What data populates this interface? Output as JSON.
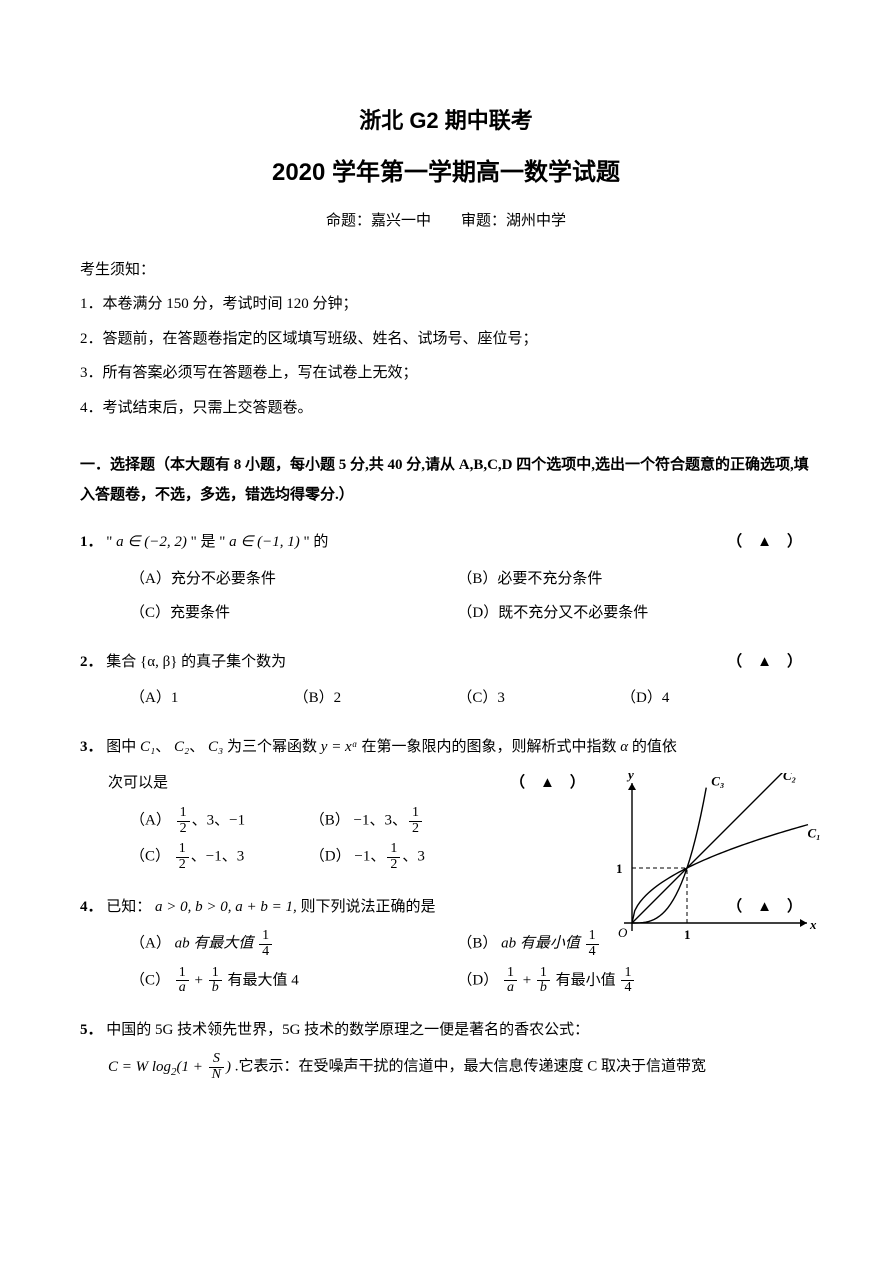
{
  "header": {
    "title_main": "浙北 G2 期中联考",
    "title_sub": "2020 学年第一学期高一数学试题",
    "attribution": "命题：嘉兴一中　　审题：湖州中学"
  },
  "notice": {
    "heading": "考生须知：",
    "items": [
      "1．本卷满分 150 分，考试时间 120 分钟；",
      "2．答题前，在答题卷指定的区域填写班级、姓名、试场号、座位号；",
      "3．所有答案必须写在答题卷上，写在试卷上无效；",
      "4．考试结束后，只需上交答题卷。"
    ]
  },
  "section1": {
    "heading": "一．选择题（本大题有 8 小题，每小题 5 分,共 40 分,请从 A,B,C,D 四个选项中,选出一个符合题意的正确选项,填入答题卷，不选，多选，错选均得零分.）"
  },
  "blank": "（　▲　）",
  "q1": {
    "num": "1．",
    "stem_a": "\" ",
    "stem_b": " \" 是 \" ",
    "stem_c": " \" 的",
    "math1": "a ∈ (−2, 2)",
    "math2": "a ∈ (−1, 1)",
    "optA": "（A）充分不必要条件",
    "optB": "（B）必要不充分条件",
    "optC": "（C）充要条件",
    "optD": "（D）既不充分又不必要条件"
  },
  "q2": {
    "num": "2．",
    "stem": "集合 {α, β} 的真子集个数为",
    "optA": "（A）1",
    "optB": "（B）2",
    "optC": "（C）3",
    "optD": "（D）4"
  },
  "q3": {
    "num": "3．",
    "stem_a": "图中",
    "stem_b": "为三个幂函数",
    "stem_c": "在第一象限内的图象，则解析式中指数",
    "stem_d": "的值依",
    "stem_e": "次可以是",
    "c1": "C₁",
    "c2": "C₂",
    "c3": "C₃",
    "yxa": "y = xᵅ",
    "alpha": "α",
    "optA_pre": "（A）",
    "optB_pre": "（B）",
    "optC_pre": "（C）",
    "optD_pre": "（D）",
    "sep": "、",
    "v3": "3",
    "vn1": "−1",
    "chart": {
      "type": "line",
      "xlim": [
        0,
        3.2
      ],
      "ylim": [
        0,
        2.8
      ],
      "axis_color": "#000000",
      "curve_color": "#000000",
      "line_width": 1.4,
      "tick_x": 1,
      "tick_y": 1,
      "labels": {
        "x": "x",
        "y": "y",
        "origin": "O",
        "one": "1",
        "c1": "C₁",
        "c2": "C₂",
        "c3": "C₃"
      },
      "curves": [
        {
          "name": "C3",
          "alpha": 3,
          "points": [
            [
              0,
              0
            ],
            [
              0.5,
              0.125
            ],
            [
              0.8,
              0.512
            ],
            [
              1,
              1
            ],
            [
              1.2,
              1.728
            ],
            [
              1.35,
              2.46
            ]
          ]
        },
        {
          "name": "C2",
          "alpha": 1,
          "points": [
            [
              0,
              0
            ],
            [
              3,
              3
            ]
          ]
        },
        {
          "name": "C1",
          "alpha": 0.5,
          "points": [
            [
              0,
              0
            ],
            [
              0.25,
              0.5
            ],
            [
              1,
              1
            ],
            [
              2.25,
              1.5
            ],
            [
              3.2,
              1.79
            ]
          ]
        }
      ],
      "dashes": [
        [
          0,
          1,
          1,
          1
        ],
        [
          1,
          0,
          1,
          1
        ]
      ],
      "background_color": "#ffffff",
      "font_size": 13
    }
  },
  "q4": {
    "num": "4．",
    "stem_a": "已知：",
    "math": "a > 0, b > 0, a + b = 1,",
    "stem_b": "则下列说法正确的是",
    "optA_pre": "（A）",
    "optA_mid": "ab 有最大值",
    "optB_pre": "（B）",
    "optB_mid": "ab 有最小值",
    "optC_pre": "（C）",
    "optC_suf": "有最大值 4",
    "optD_pre": "（D）",
    "optD_suf": "有最小值"
  },
  "q5": {
    "num": "5．",
    "stem_a": "中国的 5G 技术领先世界，5G 技术的数学原理之一便是著名的香农公式：",
    "stem_b": " .它表示：在受噪声干扰的信道中，最大信息传递速度 C 取决于信道带宽",
    "formula_pre": "C = W log",
    "formula_sub": "2",
    "formula_mid": "(1 + ",
    "formula_frac_num": "S",
    "formula_frac_den": "N",
    "formula_suf": ")"
  }
}
